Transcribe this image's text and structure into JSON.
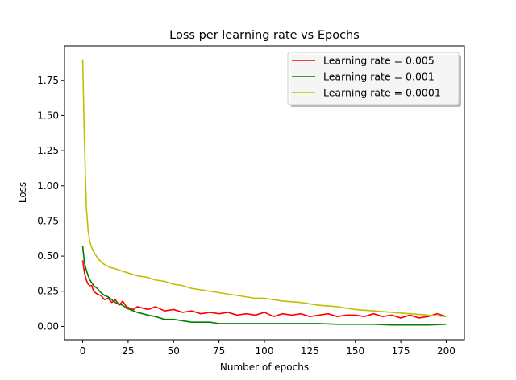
{
  "chart_data": {
    "type": "line",
    "title": "Loss per learning rate vs Epochs",
    "xlabel": "Number of epochs",
    "ylabel": "Loss",
    "xlim": [
      -10,
      210
    ],
    "ylim": [
      -0.095,
      1.995
    ],
    "xticks": [
      0,
      25,
      50,
      75,
      100,
      125,
      150,
      175,
      200
    ],
    "yticks": [
      0.0,
      0.25,
      0.5,
      0.75,
      1.0,
      1.25,
      1.5,
      1.75
    ],
    "ytick_labels": [
      "0.00",
      "0.25",
      "0.50",
      "0.75",
      "1.00",
      "1.25",
      "1.50",
      "1.75"
    ],
    "xtick_labels": [
      "0",
      "25",
      "50",
      "75",
      "100",
      "125",
      "150",
      "175",
      "200"
    ],
    "grid": false,
    "legend_position": "top-right",
    "series": [
      {
        "name": "Learning rate = 0.005",
        "color": "#ff0000",
        "x": [
          0,
          1,
          2,
          3,
          4,
          5,
          6,
          8,
          10,
          12,
          14,
          16,
          18,
          20,
          22,
          24,
          26,
          28,
          30,
          33,
          36,
          40,
          45,
          50,
          55,
          60,
          65,
          70,
          75,
          80,
          85,
          90,
          95,
          100,
          105,
          110,
          115,
          120,
          125,
          130,
          135,
          140,
          145,
          150,
          155,
          160,
          165,
          170,
          175,
          180,
          185,
          190,
          195,
          200
        ],
        "y": [
          0.47,
          0.38,
          0.33,
          0.3,
          0.29,
          0.29,
          0.25,
          0.23,
          0.22,
          0.19,
          0.2,
          0.17,
          0.19,
          0.15,
          0.18,
          0.14,
          0.13,
          0.12,
          0.14,
          0.13,
          0.12,
          0.14,
          0.11,
          0.12,
          0.1,
          0.11,
          0.09,
          0.1,
          0.09,
          0.1,
          0.08,
          0.09,
          0.08,
          0.1,
          0.07,
          0.09,
          0.08,
          0.09,
          0.07,
          0.08,
          0.09,
          0.07,
          0.08,
          0.08,
          0.07,
          0.09,
          0.07,
          0.08,
          0.06,
          0.08,
          0.06,
          0.07,
          0.09,
          0.07
        ]
      },
      {
        "name": "Learning rate = 0.001",
        "color": "#008000",
        "x": [
          0,
          1,
          2,
          3,
          4,
          5,
          6,
          8,
          10,
          12,
          14,
          16,
          18,
          20,
          22,
          24,
          26,
          28,
          30,
          33,
          36,
          40,
          45,
          50,
          55,
          60,
          65,
          70,
          75,
          80,
          85,
          90,
          95,
          100,
          110,
          120,
          130,
          140,
          150,
          160,
          170,
          180,
          190,
          200
        ],
        "y": [
          0.57,
          0.45,
          0.4,
          0.36,
          0.33,
          0.31,
          0.29,
          0.27,
          0.24,
          0.22,
          0.21,
          0.19,
          0.17,
          0.16,
          0.15,
          0.13,
          0.12,
          0.11,
          0.1,
          0.09,
          0.08,
          0.07,
          0.05,
          0.05,
          0.04,
          0.03,
          0.03,
          0.03,
          0.02,
          0.02,
          0.02,
          0.02,
          0.02,
          0.02,
          0.02,
          0.02,
          0.02,
          0.015,
          0.015,
          0.015,
          0.01,
          0.01,
          0.01,
          0.015
        ]
      },
      {
        "name": "Learning rate = 0.0001",
        "color": "#bfbf00",
        "x": [
          0,
          1,
          2,
          3,
          4,
          5,
          6,
          7,
          8,
          10,
          12,
          15,
          18,
          20,
          25,
          30,
          35,
          40,
          45,
          50,
          55,
          60,
          65,
          70,
          75,
          80,
          85,
          90,
          95,
          100,
          110,
          120,
          130,
          140,
          150,
          160,
          170,
          180,
          190,
          200
        ],
        "y": [
          1.9,
          1.3,
          0.85,
          0.68,
          0.6,
          0.56,
          0.53,
          0.51,
          0.49,
          0.46,
          0.44,
          0.42,
          0.41,
          0.4,
          0.38,
          0.36,
          0.35,
          0.33,
          0.32,
          0.3,
          0.29,
          0.27,
          0.26,
          0.25,
          0.24,
          0.23,
          0.22,
          0.21,
          0.2,
          0.2,
          0.18,
          0.17,
          0.15,
          0.14,
          0.12,
          0.11,
          0.1,
          0.09,
          0.08,
          0.07
        ]
      }
    ]
  }
}
